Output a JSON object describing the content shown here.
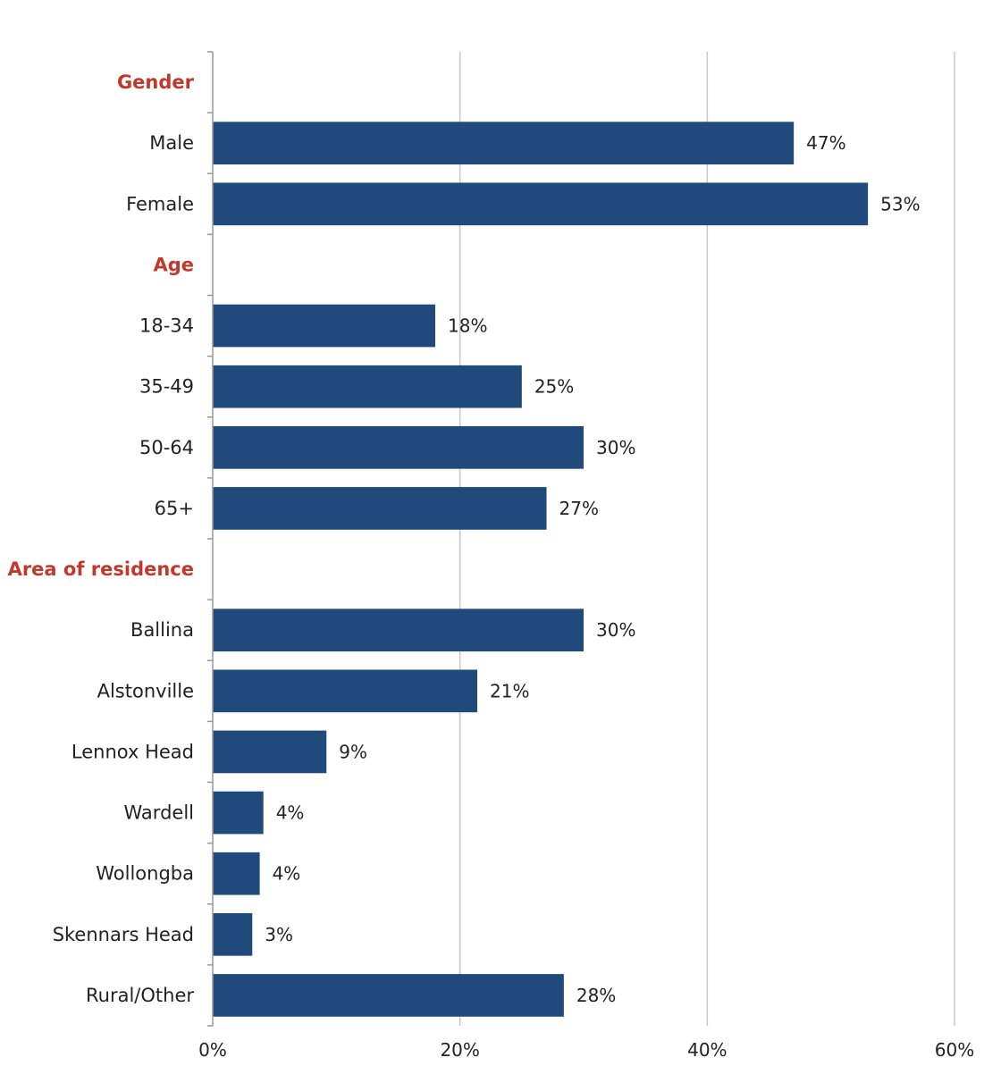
{
  "colors": {
    "bar": "#214a7c",
    "group_label": "#c0392b",
    "gridline": "#c8c8c8",
    "axis": "#999999"
  },
  "chart_data": {
    "type": "bar",
    "orientation": "horizontal",
    "title": "",
    "xlabel": "",
    "ylabel": "",
    "xlim": [
      0,
      60
    ],
    "x_ticks": [
      "0%",
      "20%",
      "40%",
      "60%"
    ],
    "x_tick_values": [
      0,
      20,
      40,
      60
    ],
    "grid": true,
    "groups": [
      {
        "label": "Gender",
        "items": [
          {
            "label": "Male",
            "value": 47,
            "display": "47%"
          },
          {
            "label": "Female",
            "value": 53,
            "display": "53%"
          }
        ]
      },
      {
        "label": "Age",
        "items": [
          {
            "label": "18-34",
            "value": 18,
            "display": "18%"
          },
          {
            "label": "35-49",
            "value": 25,
            "display": "25%"
          },
          {
            "label": "50-64",
            "value": 30,
            "display": "30%"
          },
          {
            "label": "65+",
            "value": 27,
            "display": "27%"
          }
        ]
      },
      {
        "label": "Area of residence",
        "items": [
          {
            "label": "Ballina",
            "value": 30,
            "display": "30%"
          },
          {
            "label": "Alstonville",
            "value": 21.4,
            "display": "21%"
          },
          {
            "label": "Lennox Head",
            "value": 9.2,
            "display": "9%"
          },
          {
            "label": "Wardell",
            "value": 4.1,
            "display": "4%"
          },
          {
            "label": "Wollongba",
            "value": 3.8,
            "display": "4%"
          },
          {
            "label": "Skennars Head",
            "value": 3.2,
            "display": "3%"
          },
          {
            "label": "Rural/Other",
            "value": 28.4,
            "display": "28%"
          }
        ]
      }
    ]
  }
}
